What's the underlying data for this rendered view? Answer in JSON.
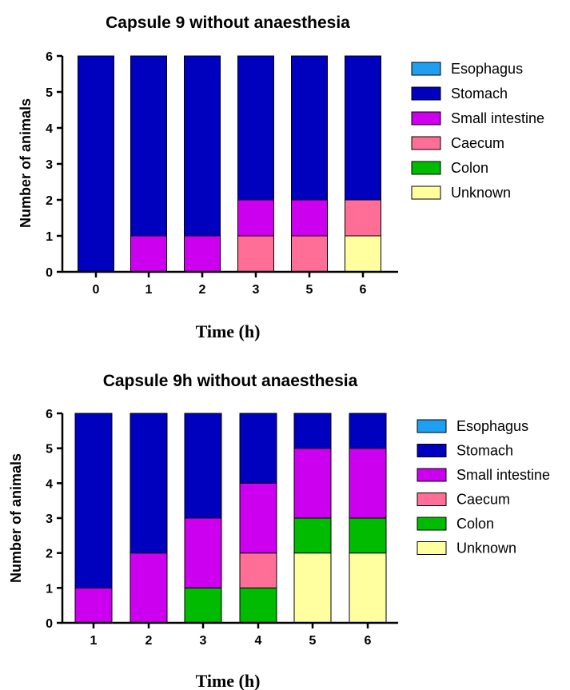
{
  "chart_data": [
    {
      "type": "bar",
      "stacked": true,
      "title": "Capsule 9 without anaesthesia",
      "xlabel": "Time (h)",
      "ylabel": "Number of animals",
      "ylim": [
        0,
        6
      ],
      "yticks": [
        "0",
        "1",
        "2",
        "3",
        "4",
        "5",
        "6"
      ],
      "categories": [
        "0",
        "1",
        "2",
        "3",
        "5",
        "6"
      ],
      "legend_position": "right",
      "series": [
        {
          "name": "Esophagus",
          "color": "#1E9FF0",
          "values": [
            0,
            0,
            0,
            0,
            0,
            0
          ]
        },
        {
          "name": "Stomach",
          "color": "#0000BF",
          "values": [
            6,
            5,
            5,
            4,
            4,
            4
          ]
        },
        {
          "name": "Small intestine",
          "color": "#CC00EE",
          "values": [
            0,
            1,
            1,
            1,
            1,
            0
          ]
        },
        {
          "name": "Caecum",
          "color": "#FF6E96",
          "values": [
            0,
            0,
            0,
            1,
            1,
            1
          ]
        },
        {
          "name": "Colon",
          "color": "#00BB00",
          "values": [
            0,
            0,
            0,
            0,
            0,
            0
          ]
        },
        {
          "name": "Unknown",
          "color": "#FFFFA0",
          "values": [
            0,
            0,
            0,
            0,
            0,
            1
          ]
        }
      ]
    },
    {
      "type": "bar",
      "stacked": true,
      "title": "Capsule 9h without anaesthesia",
      "xlabel": "Time (h)",
      "ylabel": "Number of animals",
      "ylim": [
        0,
        6
      ],
      "yticks": [
        "0",
        "1",
        "2",
        "3",
        "4",
        "5",
        "6"
      ],
      "categories": [
        "1",
        "2",
        "3",
        "4",
        "5",
        "6"
      ],
      "legend_position": "right",
      "series": [
        {
          "name": "Esophagus",
          "color": "#1E9FF0",
          "values": [
            0,
            0,
            0,
            0,
            0,
            0
          ]
        },
        {
          "name": "Stomach",
          "color": "#0000BF",
          "values": [
            5,
            4,
            3,
            2,
            1,
            1
          ]
        },
        {
          "name": "Small intestine",
          "color": "#CC00EE",
          "values": [
            1,
            2,
            2,
            2,
            2,
            2
          ]
        },
        {
          "name": "Caecum",
          "color": "#FF6E96",
          "values": [
            0,
            0,
            0,
            1,
            0,
            0
          ]
        },
        {
          "name": "Colon",
          "color": "#00BB00",
          "values": [
            0,
            0,
            1,
            1,
            1,
            1
          ]
        },
        {
          "name": "Unknown",
          "color": "#FFFFA0",
          "values": [
            0,
            0,
            0,
            0,
            2,
            2
          ]
        }
      ]
    }
  ]
}
